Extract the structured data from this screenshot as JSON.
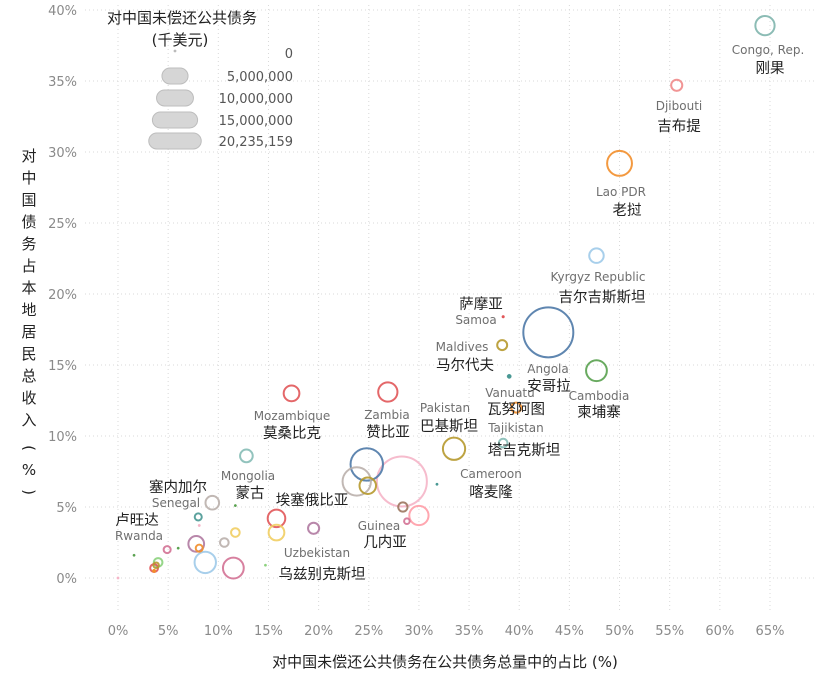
{
  "chart_data": {
    "type": "scatter",
    "xlabel": "对中国未偿还公共债务在公共债务总量中的占比 (%)",
    "ylabel": "对中国债务占本地居民总收入 (%)",
    "xlim": [
      0,
      0.65
    ],
    "ylim": [
      0,
      0.4
    ],
    "x_ticks": [
      "0%",
      "5%",
      "10%",
      "15%",
      "20%",
      "25%",
      "30%",
      "35%",
      "40%",
      "45%",
      "50%",
      "55%",
      "60%",
      "65%"
    ],
    "y_ticks": [
      "0%",
      "5%",
      "10%",
      "15%",
      "20%",
      "25%",
      "30%",
      "35%",
      "40%"
    ],
    "gridlines": "dotted",
    "size_legend": {
      "title_line1": "对中国未偿还公共债务",
      "title_line2": "(千美元)",
      "entries": [
        "0",
        "5,000,000",
        "10,000,000",
        "15,000,000",
        "20,235,159"
      ],
      "values": [
        0,
        5000000,
        10000000,
        15000000,
        20235159
      ]
    },
    "points": [
      {
        "en": "Congo, Rep.",
        "zh": "刚果",
        "x": 0.645,
        "y": 0.389,
        "size": 3000000,
        "color": "#7fb5ad"
      },
      {
        "en": "Djibouti",
        "zh": "吉布提",
        "x": 0.557,
        "y": 0.347,
        "size": 1000000,
        "color": "#f08a8a"
      },
      {
        "en": "Lao PDR",
        "zh": "老挝",
        "x": 0.5,
        "y": 0.292,
        "size": 5000000,
        "color": "#f28e2b"
      },
      {
        "en": "Kyrgyz Republic",
        "zh": "吉尔吉斯斯坦",
        "x": 0.477,
        "y": 0.227,
        "size": 1700000,
        "color": "#9ecae9"
      },
      {
        "en": "Samoa",
        "zh": "萨摩亚",
        "x": 0.384,
        "y": 0.184,
        "size": 60000,
        "color": "#e15759"
      },
      {
        "en": "Maldives",
        "zh": "马尔代夫",
        "x": 0.383,
        "y": 0.164,
        "size": 800000,
        "color": "#b6992d"
      },
      {
        "en": "Angola",
        "zh": "安哥拉",
        "x": 0.429,
        "y": 0.173,
        "size": 20235159,
        "color": "#4e79a7"
      },
      {
        "en": "Cambodia",
        "zh": "柬埔寨",
        "x": 0.477,
        "y": 0.146,
        "size": 3500000,
        "color": "#59a14f"
      },
      {
        "en": "Vanuatu",
        "zh": "瓦努阿图",
        "x": 0.39,
        "y": 0.142,
        "size": 150000,
        "color": "#499894"
      },
      {
        "en": "Pakistan",
        "zh": "巴基斯坦",
        "x": 0.397,
        "y": 0.12,
        "size": 800000,
        "color": "#f28e2b"
      },
      {
        "en": "Tajikistan",
        "zh": "塔吉克斯坦",
        "x": 0.384,
        "y": 0.095,
        "size": 600000,
        "color": "#86bcb6"
      },
      {
        "en": "Cameroon",
        "zh": "喀麦隆",
        "x": 0.335,
        "y": 0.091,
        "size": 4000000,
        "color": "#b6992d"
      },
      {
        "en": "",
        "zh": "",
        "x": 0.318,
        "y": 0.066,
        "size": 50000,
        "color": "#499894"
      },
      {
        "en": "Zambia",
        "zh": "赞比亚",
        "x": 0.269,
        "y": 0.131,
        "size": 3000000,
        "color": "#e15759"
      },
      {
        "en": "Mozambique",
        "zh": "莫桑比克",
        "x": 0.173,
        "y": 0.13,
        "size": 2000000,
        "color": "#e15759"
      },
      {
        "en": "",
        "zh": "",
        "x": 0.248,
        "y": 0.08,
        "size": 8500000,
        "color": "#4e79a7"
      },
      {
        "en": "",
        "zh": "",
        "x": 0.283,
        "y": 0.068,
        "size": 20235159,
        "color": "#f5b5c8"
      },
      {
        "en": "",
        "zh": "",
        "x": 0.238,
        "y": 0.068,
        "size": 6500000,
        "color": "#bab0ac"
      },
      {
        "en": "",
        "zh": "",
        "x": 0.249,
        "y": 0.065,
        "size": 2200000,
        "color": "#b6992d"
      },
      {
        "en": "",
        "zh": "",
        "x": 0.284,
        "y": 0.05,
        "size": 700000,
        "color": "#9c755f"
      },
      {
        "en": "",
        "zh": "",
        "x": 0.3,
        "y": 0.044,
        "size": 3000000,
        "color": "#ff9da7"
      },
      {
        "en": "Guinea",
        "zh": "几内亚",
        "x": 0.288,
        "y": 0.04,
        "size": 250000,
        "color": "#d37295"
      },
      {
        "en": "",
        "zh": "",
        "x": 0.195,
        "y": 0.035,
        "size": 1000000,
        "color": "#b07aa1"
      },
      {
        "en": "Mongolia",
        "zh": "蒙古",
        "x": 0.128,
        "y": 0.086,
        "size": 1300000,
        "color": "#86bcb6"
      },
      {
        "en": "",
        "zh": "",
        "x": 0.117,
        "y": 0.051,
        "size": 20000,
        "color": "#59a14f"
      },
      {
        "en": "",
        "zh": "",
        "x": 0.158,
        "y": 0.042,
        "size": 2500000,
        "color": "#e15759"
      },
      {
        "en": "",
        "zh": "",
        "x": 0.158,
        "y": 0.032,
        "size": 2000000,
        "color": "#f1ce63"
      },
      {
        "en": "Uzbekistan",
        "zh": "乌兹别克斯坦",
        "x": 0.147,
        "y": 0.009,
        "size": 30000,
        "color": "#8cd17d"
      },
      {
        "en": "",
        "zh": "",
        "x": 0.115,
        "y": 0.007,
        "size": 3500000,
        "color": "#d37295"
      },
      {
        "en": "",
        "zh": "",
        "x": 0.117,
        "y": 0.032,
        "size": 600000,
        "color": "#f1ce63"
      },
      {
        "en": "",
        "zh": "",
        "x": 0.106,
        "y": 0.025,
        "size": 600000,
        "color": "#bab0ac"
      },
      {
        "en": "",
        "zh": "",
        "x": 0.087,
        "y": 0.011,
        "size": 3700000,
        "color": "#9ecae9"
      },
      {
        "en": "Senegal",
        "zh": "塞内加尔",
        "x": 0.094,
        "y": 0.053,
        "size": 1500000,
        "color": "#bab0ac"
      },
      {
        "en": "",
        "zh": "",
        "x": 0.08,
        "y": 0.043,
        "size": 400000,
        "color": "#499894"
      },
      {
        "en": "",
        "zh": "",
        "x": 0.081,
        "y": 0.037,
        "size": 50000,
        "color": "#f5b5c8"
      },
      {
        "en": "",
        "zh": "",
        "x": 0.078,
        "y": 0.024,
        "size": 2000000,
        "color": "#b07aa1"
      },
      {
        "en": "",
        "zh": "",
        "x": 0.081,
        "y": 0.021,
        "size": 400000,
        "color": "#f28e2b"
      },
      {
        "en": "",
        "zh": "",
        "x": 0.06,
        "y": 0.021,
        "size": 40000,
        "color": "#59a14f"
      },
      {
        "en": "",
        "zh": "",
        "x": 0.049,
        "y": 0.02,
        "size": 400000,
        "color": "#d37295"
      },
      {
        "en": "Rwanda",
        "zh": "卢旺达",
        "x": 0.016,
        "y": 0.016,
        "size": 30000,
        "color": "#59a14f"
      },
      {
        "en": "",
        "zh": "",
        "x": 0.04,
        "y": 0.011,
        "size": 600000,
        "color": "#8cd17d"
      },
      {
        "en": "",
        "zh": "",
        "x": 0.038,
        "y": 0.009,
        "size": 250000,
        "color": "#b6992d"
      },
      {
        "en": "",
        "zh": "",
        "x": 0.036,
        "y": 0.007,
        "size": 500000,
        "color": "#e15759"
      },
      {
        "en": "",
        "zh": "",
        "x": 0.036,
        "y": 0.005,
        "size": 100000,
        "color": "#f28e2b"
      },
      {
        "en": "",
        "zh": "",
        "x": 0.0,
        "y": 0.0,
        "size": 1000,
        "color": "#f5b5c8"
      }
    ],
    "labels": [
      {
        "en": "Congo, Rep.",
        "zh": "刚果",
        "ex": 768,
        "ey": 54,
        "zx": 770,
        "zy": 73,
        "anchor": "middle"
      },
      {
        "en": "Djibouti",
        "zh": "吉布提",
        "ex": 679,
        "ey": 110,
        "zx": 679,
        "zy": 131,
        "anchor": "middle"
      },
      {
        "en": "Lao PDR",
        "zh": "老挝",
        "ex": 621,
        "ey": 196,
        "zx": 627,
        "zy": 215,
        "anchor": "middle"
      },
      {
        "en": "Kyrgyz Republic",
        "zh": "吉尔吉斯斯坦",
        "ex": 598,
        "ey": 281,
        "zx": 602,
        "zy": 302,
        "anchor": "middle"
      },
      {
        "en": "Samoa",
        "zh": "萨摩亚",
        "ex": 476,
        "ey": 324,
        "zx": 481,
        "zy": 309,
        "anchor": "middle"
      },
      {
        "en": "Maldives",
        "zh": "马尔代夫",
        "ex": 462,
        "ey": 351,
        "zx": 465,
        "zy": 370,
        "anchor": "middle"
      },
      {
        "en": "Angola",
        "zh": "安哥拉",
        "ex": 548,
        "ey": 373,
        "zx": 549,
        "zy": 391,
        "anchor": "middle"
      },
      {
        "en": "Cambodia",
        "zh": "柬埔寨",
        "ex": 599,
        "ey": 400,
        "zx": 599,
        "zy": 417,
        "anchor": "middle"
      },
      {
        "en": "Vanuatu",
        "zh": "瓦努阿图",
        "ex": 510,
        "ey": 397,
        "zx": 516,
        "zy": 414,
        "anchor": "middle"
      },
      {
        "en": "Pakistan",
        "zh": "巴基斯坦",
        "ex": 445,
        "ey": 412,
        "zx": 449,
        "zy": 431,
        "anchor": "middle"
      },
      {
        "en": "Tajikistan",
        "zh": "塔吉克斯坦",
        "ex": 516,
        "ey": 432,
        "zx": 524,
        "zy": 455,
        "anchor": "middle"
      },
      {
        "en": "Cameroon",
        "zh": "喀麦隆",
        "ex": 491,
        "ey": 478,
        "zx": 491,
        "zy": 497,
        "anchor": "middle"
      },
      {
        "en": "Zambia",
        "zh": "赞比亚",
        "ex": 387,
        "ey": 419,
        "zx": 388,
        "zy": 437,
        "anchor": "middle"
      },
      {
        "en": "Mozambique",
        "zh": "莫桑比克",
        "ex": 292,
        "ey": 420,
        "zx": 292,
        "zy": 438,
        "anchor": "middle"
      },
      {
        "en": "Guinea",
        "zh": "几内亚",
        "ex": 379,
        "ey": 530,
        "zx": 385,
        "zy": 547,
        "anchor": "middle"
      },
      {
        "en": "Mongolia",
        "zh": "蒙古",
        "ex": 248,
        "ey": 480,
        "zx": 250,
        "zy": 498,
        "anchor": "middle"
      },
      {
        "en": "Uzbekistan",
        "zh": "乌兹别克斯坦",
        "ex": 317,
        "ey": 557,
        "zx": 322,
        "zy": 579,
        "anchor": "middle"
      },
      {
        "en": "Senegal",
        "zh": "塞内加尔",
        "ex": 176,
        "ey": 507,
        "zx": 178,
        "zy": 492,
        "anchor": "middle"
      },
      {
        "en": "Rwanda",
        "zh": "卢旺达",
        "ex": 139,
        "ey": 540,
        "zx": 137,
        "zy": 525,
        "anchor": "middle"
      },
      {
        "en": "",
        "zh": "埃塞俄比亚",
        "ex": 0,
        "ey": 0,
        "zx": 312,
        "zy": 505,
        "anchor": "middle"
      }
    ]
  }
}
